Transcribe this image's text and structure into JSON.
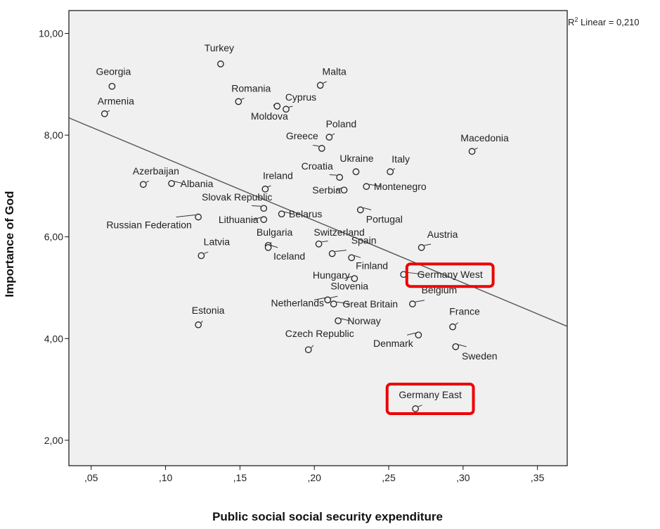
{
  "chart_data": {
    "type": "scatter",
    "xlabel": "Public social social security expenditure",
    "ylabel": "Importance of God",
    "xlim": [
      0.035,
      0.37
    ],
    "ylim": [
      1.5,
      10.45
    ],
    "x_ticks": [
      0.05,
      0.1,
      0.15,
      0.2,
      0.25,
      0.3,
      0.35
    ],
    "x_tick_labels": [
      ",05",
      ",10",
      ",15",
      ",20",
      ",25",
      ",30",
      ",35"
    ],
    "y_ticks": [
      2,
      4,
      6,
      8,
      10
    ],
    "y_tick_labels": [
      "2,00",
      "4,00",
      "6,00",
      "8,00",
      "10,00"
    ],
    "fit_line": {
      "label": "R² Linear = 0,210",
      "r2_prefix": "R",
      "r2_rest": " Linear = 0,210",
      "x": [
        0.035,
        0.37
      ],
      "y": [
        8.34,
        4.24
      ]
    },
    "highlight_color": "#ee0000",
    "highlighted": [
      "Germany West",
      "Germany East"
    ],
    "points": [
      {
        "label": "Turkey",
        "x": 0.137,
        "y": 9.4
      },
      {
        "label": "Georgia",
        "x": 0.064,
        "y": 8.96
      },
      {
        "label": "Malta",
        "x": 0.204,
        "y": 8.98
      },
      {
        "label": "Romania",
        "x": 0.149,
        "y": 8.66
      },
      {
        "label": "Cyprus",
        "x": 0.181,
        "y": 8.51
      },
      {
        "label": "Moldova",
        "x": 0.175,
        "y": 8.57
      },
      {
        "label": "Armenia",
        "x": 0.059,
        "y": 8.42
      },
      {
        "label": "Poland",
        "x": 0.21,
        "y": 7.96
      },
      {
        "label": "Greece",
        "x": 0.205,
        "y": 7.74
      },
      {
        "label": "Macedonia",
        "x": 0.306,
        "y": 7.68
      },
      {
        "label": "Ukraine",
        "x": 0.228,
        "y": 7.28
      },
      {
        "label": "Italy",
        "x": 0.251,
        "y": 7.28
      },
      {
        "label": "Croatia",
        "x": 0.217,
        "y": 7.17
      },
      {
        "label": "Azerbaijan",
        "x": 0.085,
        "y": 7.03
      },
      {
        "label": "Albania",
        "x": 0.104,
        "y": 7.05
      },
      {
        "label": "Ireland",
        "x": 0.167,
        "y": 6.94
      },
      {
        "label": "Serbia",
        "x": 0.22,
        "y": 6.92
      },
      {
        "label": "Montenegro",
        "x": 0.235,
        "y": 6.99
      },
      {
        "label": "Slovak Republic",
        "x": 0.166,
        "y": 6.56
      },
      {
        "label": "Belarus",
        "x": 0.178,
        "y": 6.45
      },
      {
        "label": "Portugal",
        "x": 0.231,
        "y": 6.53
      },
      {
        "label": "Russian Federation",
        "x": 0.122,
        "y": 6.39
      },
      {
        "label": "Lithuania",
        "x": 0.166,
        "y": 6.34
      },
      {
        "label": "Bulgaria",
        "x": 0.169,
        "y": 5.83
      },
      {
        "label": "Switzerland",
        "x": 0.203,
        "y": 5.86
      },
      {
        "label": "Austria",
        "x": 0.272,
        "y": 5.79
      },
      {
        "label": "Latvia",
        "x": 0.124,
        "y": 5.63
      },
      {
        "label": "Iceland",
        "x": 0.169,
        "y": 5.79
      },
      {
        "label": "Spain",
        "x": 0.212,
        "y": 5.67
      },
      {
        "label": "Finland",
        "x": 0.225,
        "y": 5.59
      },
      {
        "label": "Germany West",
        "x": 0.26,
        "y": 5.26
      },
      {
        "label": "Hungary",
        "x": 0.227,
        "y": 5.18
      },
      {
        "label": "Slovenia",
        "x": 0.209,
        "y": 4.76
      },
      {
        "label": "Belgium",
        "x": 0.266,
        "y": 4.68
      },
      {
        "label": "Great Britain",
        "x": 0.213,
        "y": 4.68
      },
      {
        "label": "Netherlands",
        "x": 0.209,
        "y": 4.76
      },
      {
        "label": "Estonia",
        "x": 0.122,
        "y": 4.27
      },
      {
        "label": "Norway",
        "x": 0.216,
        "y": 4.35
      },
      {
        "label": "France",
        "x": 0.293,
        "y": 4.23
      },
      {
        "label": "Denmark",
        "x": 0.27,
        "y": 4.07
      },
      {
        "label": "Czech Republic",
        "x": 0.196,
        "y": 3.78
      },
      {
        "label": "Sweden",
        "x": 0.295,
        "y": 3.84
      },
      {
        "label": "Germany East",
        "x": 0.268,
        "y": 2.62
      }
    ]
  }
}
